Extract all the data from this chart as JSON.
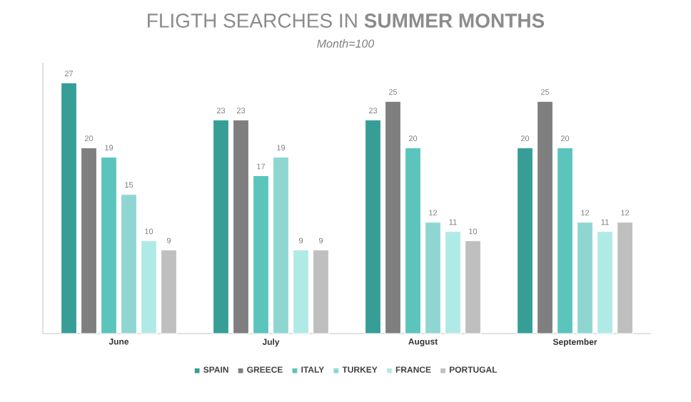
{
  "chart_data": {
    "type": "bar",
    "title": "FLIGTH SEARCHES IN **SUMMER MONTHS**",
    "subtitle": "*Month=100*",
    "categories": [
      "June",
      "July",
      "August",
      "September"
    ],
    "series": [
      {
        "name": "SPAIN",
        "color": "#369e96",
        "values": [
          27,
          23,
          23,
          20
        ]
      },
      {
        "name": "GREECE",
        "color": "#7f7f7f",
        "values": [
          20,
          23,
          25,
          25
        ]
      },
      {
        "name": "ITALY",
        "color": "#5bc5bd",
        "values": [
          19,
          17,
          20,
          20
        ]
      },
      {
        "name": "TURKEY",
        "color": "#8fd6d2",
        "values": [
          15,
          19,
          12,
          12
        ]
      },
      {
        "name": "FRANCE",
        "color": "#b0eae6",
        "values": [
          10,
          9,
          11,
          11
        ]
      },
      {
        "name": "PORTUGAL",
        "color": "#bfbfbf",
        "values": [
          9,
          9,
          10,
          12
        ]
      }
    ],
    "data_labels": true,
    "legend": "bottom"
  }
}
